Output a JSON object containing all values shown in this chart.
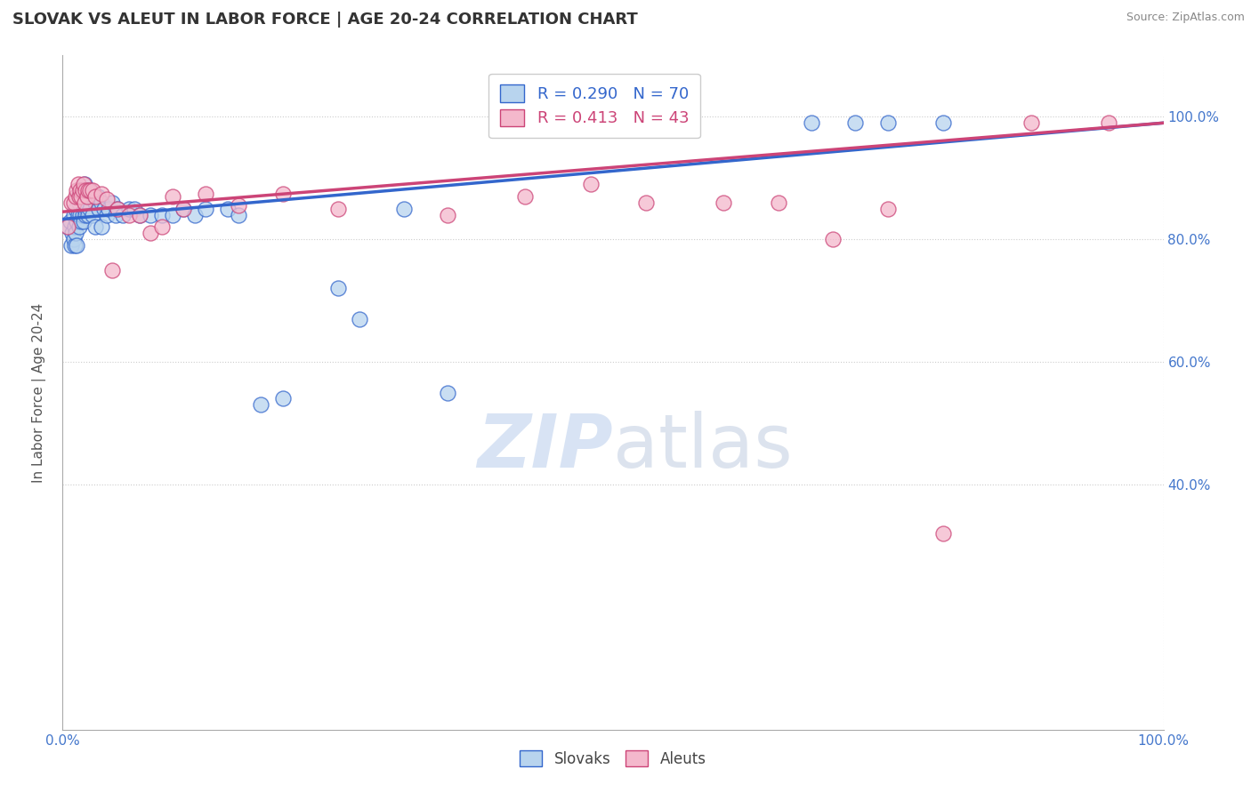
{
  "title": "SLOVAK VS ALEUT IN LABOR FORCE | AGE 20-24 CORRELATION CHART",
  "source": "Source: ZipAtlas.com",
  "ylabel": "In Labor Force | Age 20-24",
  "x_min": 0.0,
  "x_max": 1.0,
  "y_min": 0.0,
  "y_max": 1.1,
  "blue_R": 0.29,
  "blue_N": 70,
  "pink_R": 0.413,
  "pink_N": 43,
  "blue_color": "#b8d4ee",
  "pink_color": "#f4b8cc",
  "blue_line_color": "#3366cc",
  "pink_line_color": "#cc4477",
  "y_tick_labels": [
    "40.0%",
    "60.0%",
    "80.0%",
    "100.0%"
  ],
  "y_ticks": [
    0.4,
    0.6,
    0.8,
    1.0
  ],
  "blue_scatter_x": [
    0.005,
    0.007,
    0.008,
    0.009,
    0.01,
    0.01,
    0.011,
    0.011,
    0.012,
    0.012,
    0.013,
    0.013,
    0.014,
    0.014,
    0.015,
    0.015,
    0.016,
    0.016,
    0.017,
    0.017,
    0.018,
    0.018,
    0.019,
    0.019,
    0.02,
    0.02,
    0.021,
    0.021,
    0.022,
    0.022,
    0.023,
    0.023,
    0.025,
    0.025,
    0.027,
    0.027,
    0.03,
    0.03,
    0.032,
    0.033,
    0.035,
    0.035,
    0.038,
    0.04,
    0.042,
    0.045,
    0.048,
    0.05,
    0.055,
    0.06,
    0.065,
    0.07,
    0.08,
    0.09,
    0.1,
    0.11,
    0.12,
    0.13,
    0.15,
    0.16,
    0.18,
    0.2,
    0.25,
    0.27,
    0.31,
    0.35,
    0.68,
    0.72,
    0.75,
    0.8
  ],
  "blue_scatter_y": [
    0.82,
    0.83,
    0.79,
    0.81,
    0.84,
    0.8,
    0.82,
    0.79,
    0.85,
    0.81,
    0.83,
    0.79,
    0.87,
    0.84,
    0.86,
    0.82,
    0.88,
    0.84,
    0.87,
    0.83,
    0.88,
    0.84,
    0.87,
    0.83,
    0.89,
    0.85,
    0.88,
    0.84,
    0.88,
    0.85,
    0.87,
    0.84,
    0.88,
    0.85,
    0.87,
    0.84,
    0.86,
    0.82,
    0.87,
    0.85,
    0.86,
    0.82,
    0.85,
    0.84,
    0.85,
    0.86,
    0.84,
    0.85,
    0.84,
    0.85,
    0.85,
    0.84,
    0.84,
    0.84,
    0.84,
    0.85,
    0.84,
    0.85,
    0.85,
    0.84,
    0.53,
    0.54,
    0.72,
    0.67,
    0.85,
    0.55,
    0.99,
    0.99,
    0.99,
    0.99
  ],
  "pink_scatter_x": [
    0.005,
    0.008,
    0.01,
    0.012,
    0.013,
    0.014,
    0.015,
    0.016,
    0.017,
    0.018,
    0.019,
    0.02,
    0.021,
    0.022,
    0.023,
    0.025,
    0.027,
    0.03,
    0.035,
    0.04,
    0.045,
    0.05,
    0.06,
    0.07,
    0.08,
    0.09,
    0.1,
    0.11,
    0.13,
    0.16,
    0.2,
    0.25,
    0.35,
    0.42,
    0.48,
    0.53,
    0.6,
    0.65,
    0.7,
    0.75,
    0.8,
    0.88,
    0.95
  ],
  "pink_scatter_y": [
    0.82,
    0.86,
    0.86,
    0.87,
    0.88,
    0.89,
    0.87,
    0.88,
    0.87,
    0.88,
    0.89,
    0.86,
    0.88,
    0.87,
    0.88,
    0.88,
    0.88,
    0.87,
    0.875,
    0.865,
    0.75,
    0.85,
    0.84,
    0.84,
    0.81,
    0.82,
    0.87,
    0.85,
    0.875,
    0.855,
    0.875,
    0.85,
    0.84,
    0.87,
    0.89,
    0.86,
    0.86,
    0.86,
    0.8,
    0.85,
    0.32,
    0.99,
    0.99
  ],
  "blue_trend_x": [
    0.0,
    1.0
  ],
  "blue_trend_y": [
    0.833,
    0.99
  ],
  "pink_trend_x": [
    0.0,
    1.0
  ],
  "pink_trend_y": [
    0.845,
    0.99
  ]
}
